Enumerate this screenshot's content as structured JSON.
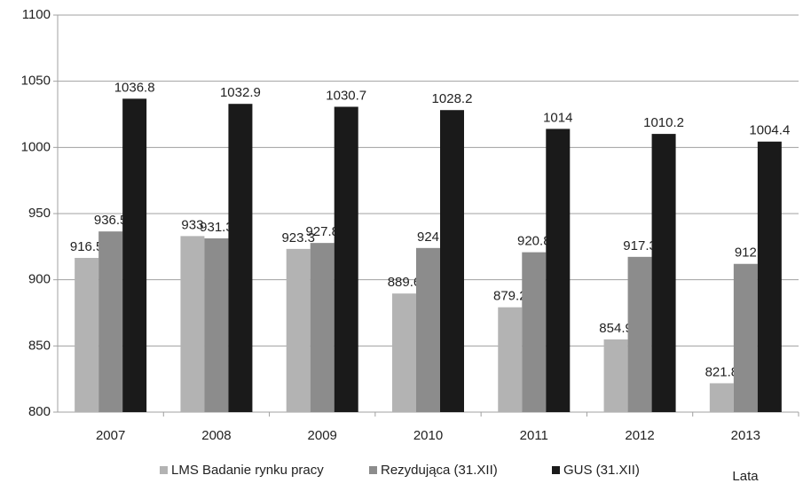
{
  "chart_data": {
    "type": "bar",
    "xlabel": "Lata",
    "categories": [
      "2007",
      "2008",
      "2009",
      "2010",
      "2011",
      "2012",
      "2013"
    ],
    "series": [
      {
        "name": "LMS Badanie rynku pracy",
        "color": "#b3b3b3",
        "values": [
          916.5,
          933,
          923.3,
          889.6,
          879.2,
          854.9,
          821.8
        ]
      },
      {
        "name": "Rezydująca (31.XII)",
        "color": "#8c8c8c",
        "values": [
          936.5,
          931.3,
          927.8,
          924,
          920.8,
          917.3,
          912
        ]
      },
      {
        "name": "GUS (31.XII)",
        "color": "#1a1a1a",
        "values": [
          1036.8,
          1032.9,
          1030.7,
          1028.2,
          1014,
          1010.2,
          1004.4
        ]
      }
    ],
    "ylim": [
      800,
      1100
    ],
    "yticks": [
      800,
      850,
      900,
      950,
      1000,
      1050,
      1100
    ],
    "grid": true
  }
}
